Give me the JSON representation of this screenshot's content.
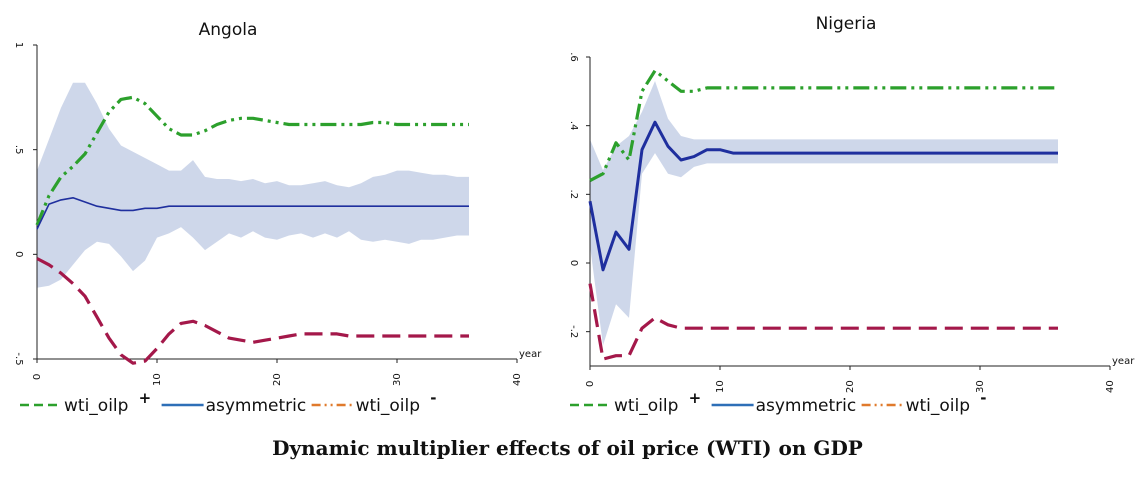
{
  "caption": "Dynamic multiplier effects of oil price (WTI) on GDP",
  "colors": {
    "positive": "#2ca02c",
    "asymmetric": "#1f2f9e",
    "negative": "#a4184a",
    "band": "#c5d0e6",
    "legend_asymmetric": "#2e6fb7",
    "legend_negative": "#e07a2c"
  },
  "chart_data": [
    {
      "type": "line",
      "title": "Angola",
      "xlabel": "year",
      "ylabel": "",
      "xlim": [
        0,
        40
      ],
      "ylim": [
        -0.5,
        1
      ],
      "xticks": [
        0,
        10,
        20,
        30,
        40
      ],
      "xtick_labels": [
        "0",
        "10",
        "20",
        "30",
        "40"
      ],
      "yticks": [
        -0.5,
        0,
        0.5,
        1
      ],
      "ytick_labels": [
        "-.5",
        "0",
        ".5",
        "1"
      ],
      "grid": false,
      "legend_position": "bottom",
      "x": [
        0,
        1,
        2,
        3,
        4,
        5,
        6,
        7,
        8,
        9,
        10,
        11,
        12,
        13,
        14,
        15,
        16,
        17,
        18,
        19,
        20,
        21,
        22,
        23,
        24,
        25,
        26,
        27,
        28,
        29,
        30,
        31,
        32,
        33,
        34,
        35,
        36
      ],
      "series": [
        {
          "name": "wti_oilp+",
          "style": "dash",
          "color": "#2ca02c",
          "values": [
            0.14,
            0.28,
            0.37,
            0.42,
            0.48,
            0.58,
            0.68,
            0.74,
            0.75,
            0.72,
            0.66,
            0.6,
            0.57,
            0.57,
            0.59,
            0.62,
            0.64,
            0.65,
            0.65,
            0.64,
            0.63,
            0.62,
            0.62,
            0.62,
            0.62,
            0.62,
            0.62,
            0.62,
            0.63,
            0.63,
            0.62,
            0.62,
            0.62,
            0.62,
            0.62,
            0.62,
            0.62
          ]
        },
        {
          "name": "asymmetric",
          "style": "solid",
          "color": "#2e6fb7",
          "values": [
            0.12,
            0.24,
            0.26,
            0.27,
            0.25,
            0.23,
            0.22,
            0.21,
            0.21,
            0.22,
            0.22,
            0.23,
            0.23,
            0.23,
            0.23,
            0.23,
            0.23,
            0.23,
            0.23,
            0.23,
            0.23,
            0.23,
            0.23,
            0.23,
            0.23,
            0.23,
            0.23,
            0.23,
            0.23,
            0.23,
            0.23,
            0.23,
            0.23,
            0.23,
            0.23,
            0.23,
            0.23
          ]
        },
        {
          "name": "wti_oilp-",
          "style": "dash-dot-dot",
          "color": "#e07a2c",
          "values": [
            -0.02,
            -0.05,
            -0.09,
            -0.14,
            -0.2,
            -0.3,
            -0.4,
            -0.48,
            -0.52,
            -0.51,
            -0.45,
            -0.38,
            -0.33,
            -0.32,
            -0.34,
            -0.37,
            -0.4,
            -0.41,
            -0.42,
            -0.41,
            -0.4,
            -0.39,
            -0.38,
            -0.38,
            -0.38,
            -0.38,
            -0.39,
            -0.39,
            -0.39,
            -0.39,
            -0.39,
            -0.39,
            -0.39,
            -0.39,
            -0.39,
            -0.39,
            -0.39
          ]
        },
        {
          "name": "ci_upper",
          "style": "band",
          "color": "#c5d0e6",
          "values": [
            0.4,
            0.55,
            0.7,
            0.82,
            0.82,
            0.72,
            0.6,
            0.52,
            0.49,
            0.46,
            0.43,
            0.4,
            0.4,
            0.45,
            0.37,
            0.36,
            0.36,
            0.35,
            0.36,
            0.34,
            0.35,
            0.33,
            0.33,
            0.34,
            0.35,
            0.33,
            0.32,
            0.34,
            0.37,
            0.38,
            0.4,
            0.4,
            0.39,
            0.38,
            0.38,
            0.37,
            0.37
          ]
        },
        {
          "name": "ci_lower",
          "style": "band",
          "color": "#c5d0e6",
          "values": [
            -0.16,
            -0.15,
            -0.12,
            -0.05,
            0.02,
            0.06,
            0.05,
            -0.01,
            -0.08,
            -0.03,
            0.08,
            0.1,
            0.13,
            0.08,
            0.02,
            0.06,
            0.1,
            0.08,
            0.11,
            0.08,
            0.07,
            0.09,
            0.1,
            0.08,
            0.1,
            0.08,
            0.11,
            0.07,
            0.06,
            0.07,
            0.06,
            0.05,
            0.07,
            0.07,
            0.08,
            0.09,
            0.09
          ]
        }
      ]
    },
    {
      "type": "line",
      "title": "Nigeria",
      "xlabel": "year",
      "ylabel": "",
      "xlim": [
        0,
        40
      ],
      "ylim": [
        -0.3,
        0.6
      ],
      "xticks": [
        0,
        10,
        20,
        30,
        40
      ],
      "xtick_labels": [
        "0",
        "10",
        "20",
        "30",
        "40"
      ],
      "yticks": [
        -0.2,
        0,
        0.2,
        0.4,
        0.6
      ],
      "ytick_labels": [
        "-.2",
        "0",
        ".2",
        ".4",
        ".6"
      ],
      "grid": false,
      "legend_position": "bottom",
      "x": [
        0,
        1,
        2,
        3,
        4,
        5,
        6,
        7,
        8,
        9,
        10,
        11,
        12,
        13,
        14,
        15,
        16,
        17,
        18,
        19,
        20,
        21,
        22,
        23,
        24,
        25,
        26,
        27,
        28,
        29,
        30,
        31,
        32,
        33,
        34,
        35,
        36
      ],
      "series": [
        {
          "name": "wti_oilp+",
          "style": "dash",
          "color": "#2ca02c",
          "values": [
            0.24,
            0.26,
            0.35,
            0.3,
            0.5,
            0.56,
            0.53,
            0.5,
            0.5,
            0.51,
            0.51,
            0.51,
            0.51,
            0.51,
            0.51,
            0.51,
            0.51,
            0.51,
            0.51,
            0.51,
            0.51,
            0.51,
            0.51,
            0.51,
            0.51,
            0.51,
            0.51,
            0.51,
            0.51,
            0.51,
            0.51,
            0.51,
            0.51,
            0.51,
            0.51,
            0.51,
            0.51
          ]
        },
        {
          "name": "asymmetric",
          "style": "solid",
          "color": "#2e6fb7",
          "values": [
            0.18,
            -0.02,
            0.09,
            0.04,
            0.33,
            0.41,
            0.34,
            0.3,
            0.31,
            0.33,
            0.33,
            0.32,
            0.32,
            0.32,
            0.32,
            0.32,
            0.32,
            0.32,
            0.32,
            0.32,
            0.32,
            0.32,
            0.32,
            0.32,
            0.32,
            0.32,
            0.32,
            0.32,
            0.32,
            0.32,
            0.32,
            0.32,
            0.32,
            0.32,
            0.32,
            0.32,
            0.32
          ]
        },
        {
          "name": "wti_oilp-",
          "style": "dash-dot-dot",
          "color": "#e07a2c",
          "values": [
            -0.06,
            -0.28,
            -0.27,
            -0.27,
            -0.19,
            -0.16,
            -0.18,
            -0.19,
            -0.19,
            -0.19,
            -0.19,
            -0.19,
            -0.19,
            -0.19,
            -0.19,
            -0.19,
            -0.19,
            -0.19,
            -0.19,
            -0.19,
            -0.19,
            -0.19,
            -0.19,
            -0.19,
            -0.19,
            -0.19,
            -0.19,
            -0.19,
            -0.19,
            -0.19,
            -0.19,
            -0.19,
            -0.19,
            -0.19,
            -0.19,
            -0.19,
            -0.19
          ]
        },
        {
          "name": "ci_upper",
          "style": "band",
          "color": "#c5d0e6",
          "values": [
            0.36,
            0.27,
            0.34,
            0.37,
            0.44,
            0.53,
            0.42,
            0.37,
            0.36,
            0.36,
            0.36,
            0.36,
            0.36,
            0.36,
            0.36,
            0.36,
            0.36,
            0.36,
            0.36,
            0.36,
            0.36,
            0.36,
            0.36,
            0.36,
            0.36,
            0.36,
            0.36,
            0.36,
            0.36,
            0.36,
            0.36,
            0.36,
            0.36,
            0.36,
            0.36,
            0.36,
            0.36
          ]
        },
        {
          "name": "ci_lower",
          "style": "band",
          "color": "#c5d0e6",
          "values": [
            0.05,
            -0.24,
            -0.12,
            -0.16,
            0.26,
            0.32,
            0.26,
            0.25,
            0.28,
            0.29,
            0.29,
            0.29,
            0.29,
            0.29,
            0.29,
            0.29,
            0.29,
            0.29,
            0.29,
            0.29,
            0.29,
            0.29,
            0.29,
            0.29,
            0.29,
            0.29,
            0.29,
            0.29,
            0.29,
            0.29,
            0.29,
            0.29,
            0.29,
            0.29,
            0.29,
            0.29,
            0.29
          ]
        }
      ]
    }
  ],
  "legends": [
    {
      "items": [
        {
          "label": "wti_oilp",
          "sup": "+",
          "style": "dash",
          "color": "#2ca02c"
        },
        {
          "label": "asymmetric",
          "sup": "",
          "style": "solid",
          "color": "#2e6fb7"
        },
        {
          "label": "wti_oilp",
          "sup": "-",
          "style": "dash-dot-dot",
          "color": "#e07a2c"
        }
      ]
    },
    {
      "items": [
        {
          "label": "wti_oilp",
          "sup": "+",
          "style": "dash",
          "color": "#2ca02c"
        },
        {
          "label": "asymmetric",
          "sup": "",
          "style": "solid",
          "color": "#2e6fb7"
        },
        {
          "label": "wti_oilp",
          "sup": "-",
          "style": "dash-dot-dot",
          "color": "#e07a2c"
        }
      ]
    }
  ]
}
